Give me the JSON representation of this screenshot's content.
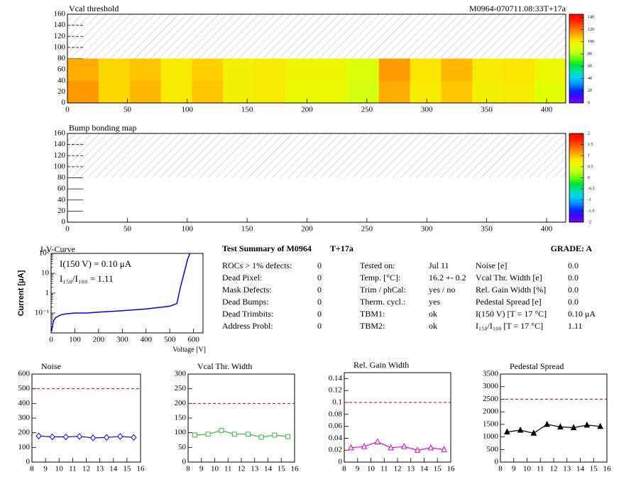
{
  "chart_data": [
    {
      "type": "heatmap",
      "title": "Vcal threshold",
      "subtitle": "M0964-070711.08:33T+17a",
      "xlim": [
        0,
        416
      ],
      "xticks": [
        0,
        50,
        100,
        150,
        200,
        250,
        300,
        350,
        400
      ],
      "ylim": [
        0,
        160
      ],
      "yticks": [
        0,
        20,
        40,
        60,
        80,
        100,
        120,
        140,
        160
      ],
      "xbins": [
        0,
        26,
        52,
        78,
        104,
        130,
        156,
        182,
        208,
        234,
        260,
        286,
        312,
        338,
        364,
        390,
        416
      ],
      "ybins": [
        0,
        40,
        80
      ],
      "values": [
        [
          115,
          105,
          110,
          100,
          108,
          98,
          100,
          95,
          95,
          88,
          112,
          100,
          108,
          98,
          100,
          92
        ],
        [
          112,
          105,
          108,
          100,
          106,
          98,
          100,
          96,
          96,
          90,
          115,
          102,
          110,
          100,
          102,
          95
        ]
      ],
      "zlim": [
        0,
        145
      ],
      "zticks": [
        0,
        20,
        40,
        60,
        80,
        100,
        120,
        140
      ],
      "palette": [
        "#8000ff",
        "#4000ff",
        "#0030ff",
        "#0090ff",
        "#00d0ff",
        "#00e0a0",
        "#00e040",
        "#60ff00",
        "#c0ff20",
        "#e8ff00",
        "#ffe000",
        "#ffa000",
        "#ff6000",
        "#ff2000",
        "#ff0000"
      ]
    },
    {
      "type": "heatmap",
      "title": "Bump bonding map",
      "xlim": [
        0,
        416
      ],
      "xticks": [
        0,
        50,
        100,
        150,
        200,
        250,
        300,
        350,
        400
      ],
      "ylim": [
        0,
        160
      ],
      "yticks": [
        0,
        20,
        40,
        60,
        80,
        100,
        120,
        140,
        160
      ],
      "zlim": [
        -2,
        2
      ],
      "zticks": [
        -2,
        -1.5,
        -1,
        -0.5,
        0,
        0.5,
        1,
        1.5,
        2
      ],
      "palette": [
        "#8000ff",
        "#4000ff",
        "#0030ff",
        "#0090ff",
        "#00d0ff",
        "#00e0a0",
        "#00e040",
        "#60ff00",
        "#c0ff20",
        "#e8ff00",
        "#ffe000",
        "#ffa000",
        "#ff6000",
        "#ff2000",
        "#ff0000"
      ]
    },
    {
      "type": "iv",
      "title": "I-V-Curve",
      "y_label": "Current [μA]",
      "x_label": "Voltage [V]",
      "annotations": [
        "I(150 V) = 0.10 μA",
        "I₁₅₀/I₁₀₀ =  1.11"
      ],
      "logy": true,
      "color": "#0000ee",
      "xlim": [
        0,
        640
      ],
      "xticks": [
        0,
        100,
        200,
        300,
        400,
        500,
        600
      ],
      "ylim": [
        0.01,
        100
      ],
      "yticks": [
        {
          "value": 0.1,
          "label": "10⁻¹"
        },
        1,
        10,
        {
          "value": 100,
          "label": "10²"
        }
      ],
      "x": [
        2,
        5,
        10,
        20,
        40,
        60,
        100,
        150,
        200,
        300,
        400,
        500,
        530,
        545,
        560,
        575,
        585
      ],
      "values": [
        0.012,
        0.02,
        0.04,
        0.06,
        0.08,
        0.09,
        0.1,
        0.1,
        0.11,
        0.13,
        0.16,
        0.22,
        0.3,
        2,
        10,
        50,
        100
      ]
    },
    {
      "type": "line",
      "title": "Noise",
      "color": "#0000ee",
      "marker": "diamond",
      "limit": 500,
      "xlim": [
        8,
        16
      ],
      "xticks": [
        8,
        9,
        10,
        11,
        12,
        13,
        14,
        15,
        16
      ],
      "ylim": [
        0,
        600
      ],
      "yticks": [
        0,
        100,
        200,
        300,
        400,
        500,
        600
      ],
      "x": [
        8.5,
        9.5,
        10.5,
        11.5,
        12.5,
        13.5,
        14.5,
        15.5
      ],
      "values": [
        178,
        172,
        172,
        175,
        165,
        168,
        175,
        168
      ]
    },
    {
      "type": "line",
      "title": "Vcal Thr. Width",
      "color": "#33bb33",
      "marker": "square",
      "limit": 200,
      "xlim": [
        8,
        16
      ],
      "xticks": [
        8,
        9,
        10,
        11,
        12,
        13,
        14,
        15,
        16
      ],
      "ylim": [
        0,
        300
      ],
      "yticks": [
        0,
        50,
        100,
        150,
        200,
        250,
        300
      ],
      "x": [
        8.5,
        9.5,
        10.5,
        11.5,
        12.5,
        13.5,
        14.5,
        15.5
      ],
      "values": [
        92,
        95,
        108,
        95,
        95,
        85,
        92,
        87
      ]
    },
    {
      "type": "line",
      "title": "Rel. Gain Width",
      "color": "#dd00dd",
      "marker": "triangle",
      "limit": 0.1,
      "xlim": [
        8,
        16
      ],
      "xticks": [
        8,
        9,
        10,
        11,
        12,
        13,
        14,
        15,
        16
      ],
      "ylim": [
        0,
        0.15
      ],
      "yticks": [
        0,
        0.02,
        0.04,
        0.06,
        0.08,
        0.1,
        0.12,
        0.14
      ],
      "x": [
        8.5,
        9.5,
        10.5,
        11.5,
        12.5,
        13.5,
        14.5,
        15.5
      ],
      "values": [
        0.024,
        0.026,
        0.034,
        0.024,
        0.026,
        0.02,
        0.024,
        0.021
      ]
    },
    {
      "type": "line",
      "title": "Pedestal Spread",
      "color": "#000000",
      "marker": "triangle-filled",
      "limit": 2500,
      "xlim": [
        8,
        16
      ],
      "xticks": [
        8,
        9,
        10,
        11,
        12,
        13,
        14,
        15,
        16
      ],
      "ylim": [
        0,
        3500
      ],
      "yticks": [
        0,
        500,
        1000,
        1500,
        2000,
        2500,
        3000,
        3500
      ],
      "x": [
        8.5,
        9.5,
        10.5,
        11.5,
        12.5,
        13.5,
        14.5,
        15.5
      ],
      "values": [
        1200,
        1270,
        1150,
        1500,
        1400,
        1370,
        1470,
        1420
      ]
    }
  ],
  "summary": {
    "title": "Test Summary of M0964",
    "tag": "T+17a",
    "grade": "GRADE:  A",
    "columns": [
      [
        [
          "ROCs > 1% defects:",
          "0"
        ],
        [
          "Dead Pixel:",
          "0"
        ],
        [
          "Mask Defects:",
          "0"
        ],
        [
          "Dead Bumps:",
          "0"
        ],
        [
          "Dead Trimbits:",
          "0"
        ],
        [
          "Address Probl:",
          "0"
        ]
      ],
      [
        [
          "Tested on:",
          "Jul 11"
        ],
        [
          "Temp. [°C]:",
          "16.2 +- 0.2"
        ],
        [
          "Trim / phCal:",
          "yes / no"
        ],
        [
          "Therm. cycl.:",
          "yes"
        ],
        [
          "TBM1:",
          "ok"
        ],
        [
          "TBM2:",
          "ok"
        ]
      ],
      [
        [
          "Noise [e]",
          "0.0"
        ],
        [
          "Vcal Thr. Width [e]",
          "0.0"
        ],
        [
          "Rel. Gain Width [%]",
          "0.0"
        ],
        [
          "Pedestal Spread [e]",
          "0.0"
        ],
        [
          "I(150 V) [T = 17 °C]",
          "0.10 μA"
        ],
        [
          "I₁₅₀/I₁₀₀  [T = 17 °C]",
          "1.11"
        ]
      ]
    ]
  }
}
